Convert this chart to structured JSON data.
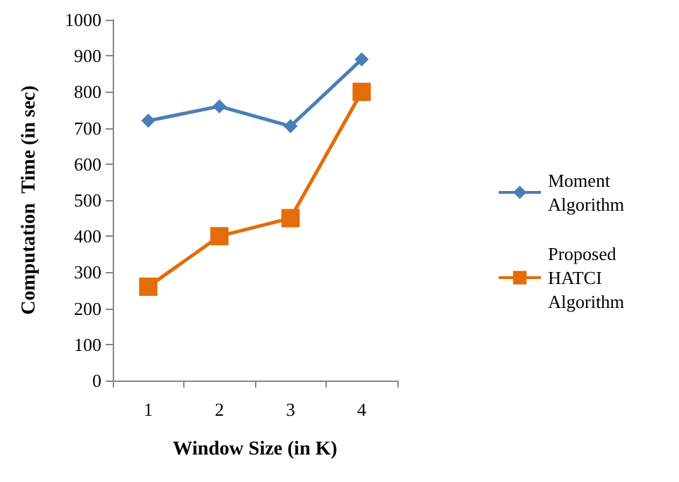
{
  "chart_data": {
    "type": "line",
    "xlabel": "Window Size (in K)",
    "ylabel": "Computation  Time (in sec)",
    "categories": [
      "1",
      "2",
      "3",
      "4"
    ],
    "series": [
      {
        "name": "Moment Algorithm",
        "color": "#4a7ebb",
        "marker": "diamond",
        "values": [
          720,
          760,
          705,
          890
        ]
      },
      {
        "name": "Proposed HATCI Algorithm",
        "color": "#e46c0a",
        "marker": "square",
        "values": [
          260,
          400,
          450,
          800
        ]
      }
    ],
    "ylim": [
      0,
      1000
    ],
    "yticks": [
      0,
      100,
      200,
      300,
      400,
      500,
      600,
      700,
      800,
      900,
      1000
    ],
    "grid": false,
    "legend": "right"
  }
}
